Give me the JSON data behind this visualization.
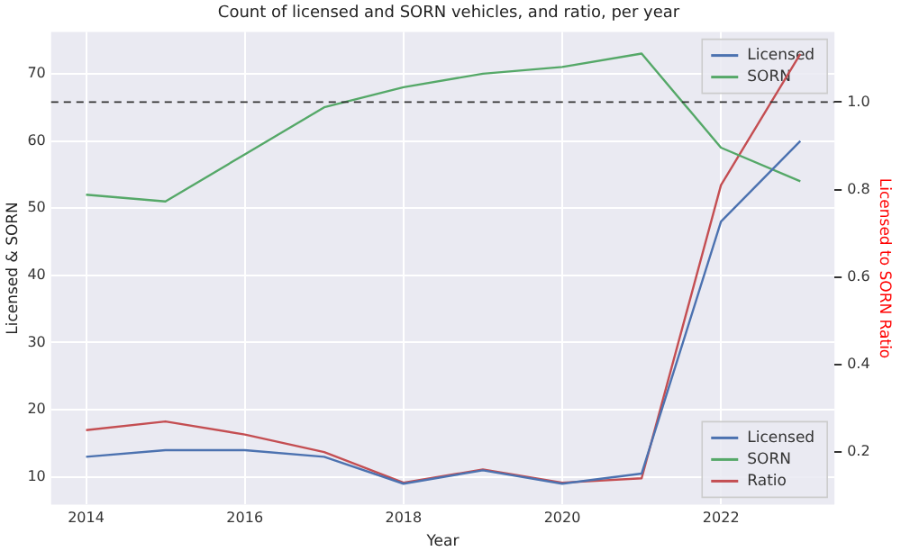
{
  "chart_data": {
    "type": "line",
    "title": "Count of licensed and SORN vehicles, and ratio, per year",
    "xlabel": "Year",
    "ylabel": "Licensed & SORN",
    "y2label": "Licensed to SORN Ratio",
    "x": [
      2014,
      2015,
      2016,
      2017,
      2018,
      2019,
      2020,
      2021,
      2022,
      2023
    ],
    "series": [
      {
        "name": "Licensed",
        "color": "#4c72b0",
        "values": [
          13,
          14,
          14,
          13,
          9,
          11,
          9,
          10.5,
          48,
          60
        ]
      },
      {
        "name": "SORN",
        "color": "#55a868",
        "values": [
          52,
          51,
          58,
          65,
          68,
          70,
          71,
          73,
          59,
          54
        ]
      },
      {
        "name": "Ratio",
        "color": "#c44e52",
        "axis": "y2",
        "values": [
          0.25,
          0.27,
          0.24,
          0.2,
          0.13,
          0.16,
          0.13,
          0.14,
          0.81,
          1.11
        ]
      }
    ],
    "xlim": [
      2013.56,
      2023.43
    ],
    "xticks": [
      2014,
      2016,
      2018,
      2020,
      2022
    ],
    "ylim": [
      5.9,
      76.2
    ],
    "yticks": [
      10,
      20,
      30,
      40,
      50,
      60,
      70
    ],
    "y2lim": [
      0.08,
      1.16
    ],
    "y2ticks": [
      0.2,
      0.4,
      0.6,
      0.8,
      {
        "value": 1,
        "label": "1.0"
      }
    ],
    "ref_lines": [
      {
        "axis": "y2",
        "value": 1.0,
        "color": "#333333",
        "line_style": "dashed"
      }
    ],
    "grid": true,
    "legend": "bottom right",
    "marker": "none",
    "line_style": "solid"
  }
}
